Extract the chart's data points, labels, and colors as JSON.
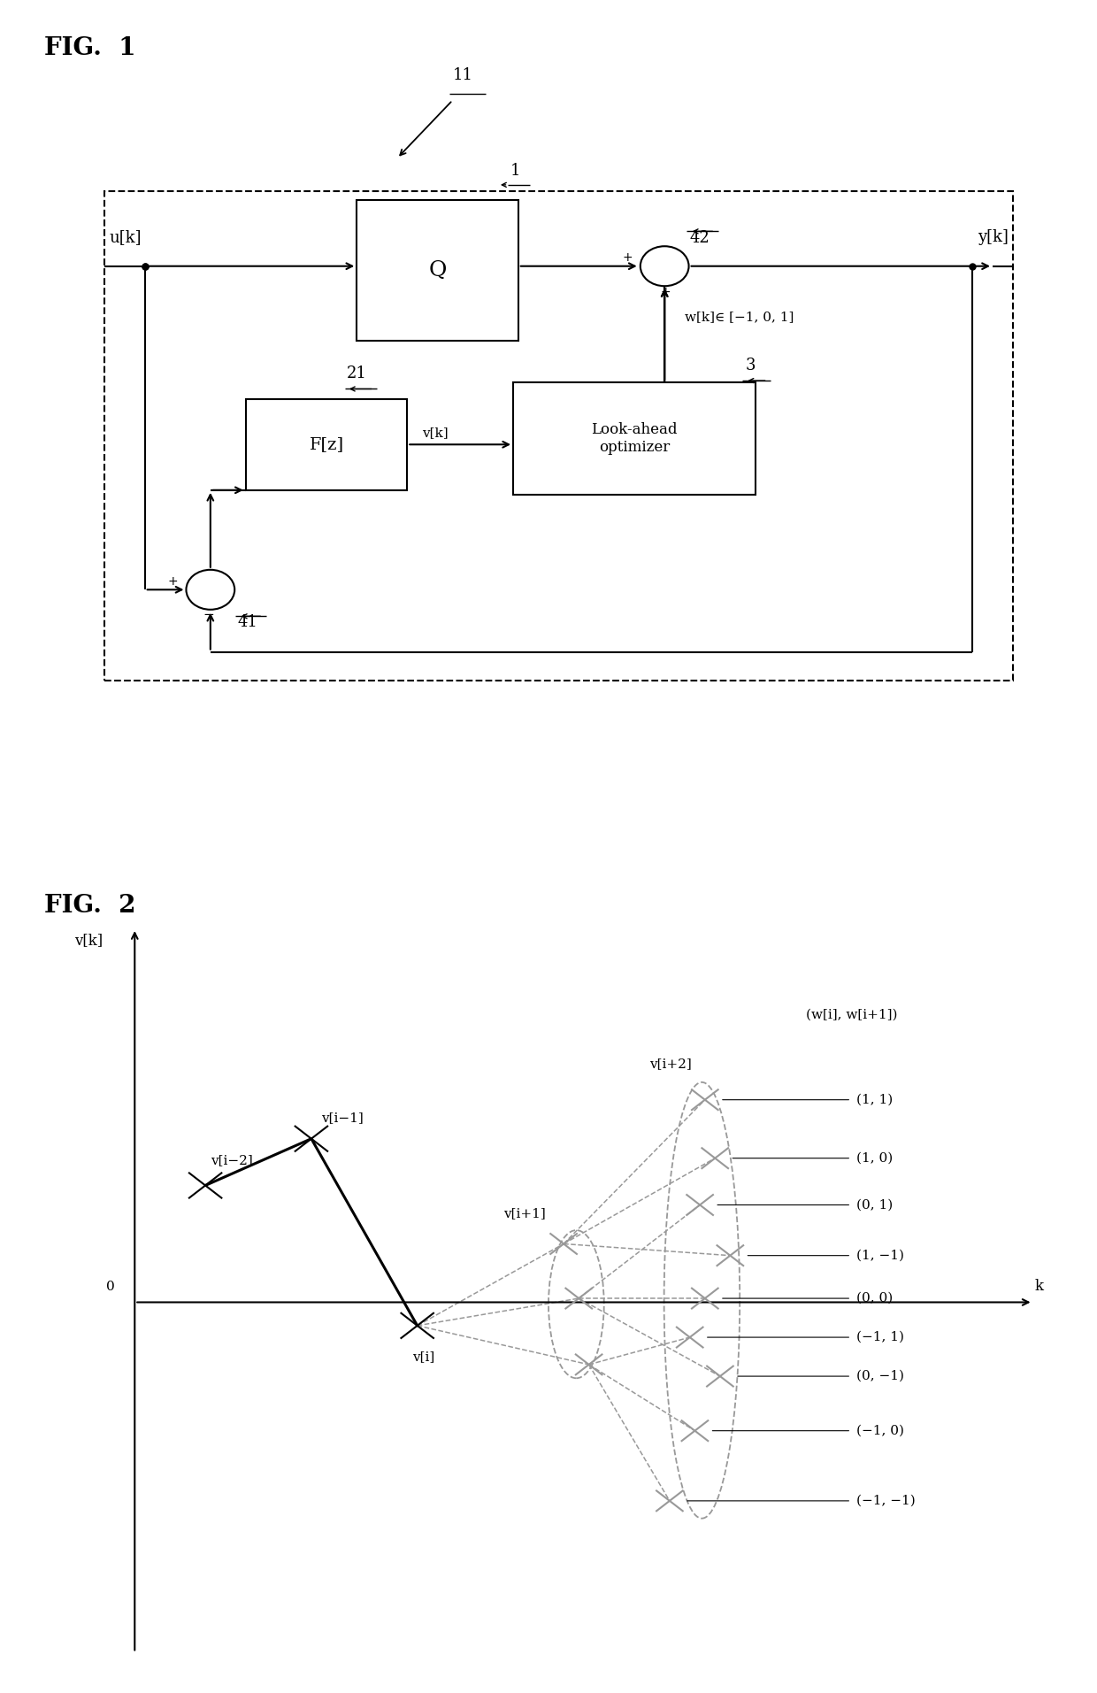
{
  "fig1_title": "FIG.  1",
  "fig2_title": "FIG.  2",
  "label_11": "11",
  "label_1": "1",
  "label_21": "21",
  "label_3": "3",
  "label_42": "42",
  "label_41": "41",
  "label_uk": "u[k]",
  "label_yk": "y[k]",
  "label_Q": "Q",
  "label_Fz": "F[z]",
  "label_vk": "v[k]",
  "label_look": "Look-ahead\noptimizer",
  "label_wk": "w[k]∈ [−1, 0, 1]",
  "fig2_ylabel": "v[k]",
  "fig2_xlabel": "k",
  "fig2_zero": "0",
  "legend_header": "(w[i], w[i+1])",
  "legend_items": [
    "(1, 1)",
    "(1, 0)",
    "(0, 1)",
    "(1, −1)",
    "(0, 0)",
    "(−1, 1)",
    "(0, −1)",
    "(−1, 0)",
    "(−1, −1)"
  ],
  "point_labels": [
    "v[i−2]",
    "v[i−1]",
    "v[i]",
    "v[i+1]",
    "v[i+2]"
  ],
  "bg_color": "#ffffff",
  "line_color": "#000000",
  "dashed_color": "#999999"
}
